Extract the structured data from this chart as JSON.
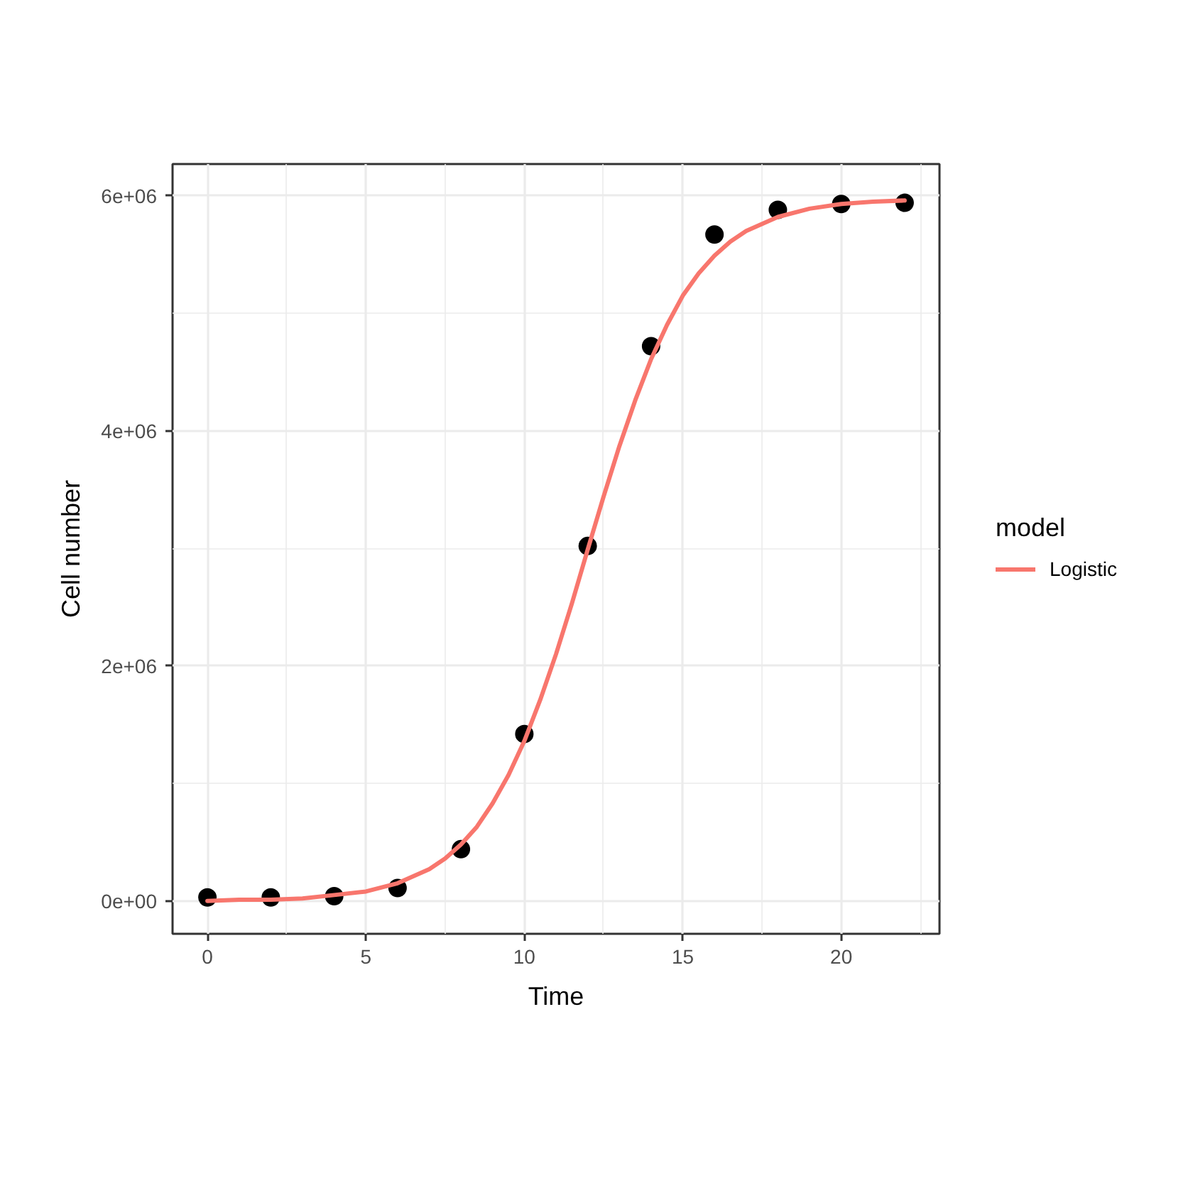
{
  "chart_data": {
    "type": "scatter",
    "xlabel": "Time",
    "ylabel": "Cell number",
    "legend_title": "model",
    "xlim": [
      -1.1,
      23.1
    ],
    "ylim": [
      -280000,
      6270000
    ],
    "xticks": [
      0,
      5,
      10,
      15,
      20
    ],
    "yticks": [
      {
        "value": 0,
        "label": "0e+00"
      },
      {
        "value": 2000000,
        "label": "2e+06"
      },
      {
        "value": 4000000,
        "label": "4e+06"
      },
      {
        "value": 6000000,
        "label": "6e+06"
      }
    ],
    "grid": true,
    "legend": "right",
    "series": [
      {
        "color": "#000000",
        "marker": "circle",
        "x": [
          0,
          2,
          4,
          6,
          8,
          10,
          12,
          14,
          16,
          18,
          20,
          22
        ],
        "values": [
          30000,
          30000,
          40000,
          110000,
          440000,
          1420000,
          3020000,
          4720000,
          5670000,
          5880000,
          5930000,
          5940000
        ]
      },
      {
        "type": "line",
        "name": "Logistic",
        "color": "#f8766d",
        "line_style": "solid",
        "x": [
          0,
          1,
          2,
          3,
          4,
          5,
          6,
          7,
          7.5,
          8,
          8.5,
          9,
          9.5,
          10,
          10.5,
          11,
          11.5,
          12,
          12.5,
          13,
          13.5,
          14,
          14.5,
          15,
          15.5,
          16,
          16.5,
          17,
          18,
          19,
          20,
          21,
          22
        ],
        "values": [
          0,
          10000,
          10000,
          20000,
          50000,
          80000,
          150000,
          270000,
          360000,
          480000,
          630000,
          830000,
          1070000,
          1360000,
          1710000,
          2100000,
          2530000,
          2990000,
          3440000,
          3870000,
          4260000,
          4610000,
          4900000,
          5150000,
          5340000,
          5490000,
          5610000,
          5700000,
          5820000,
          5890000,
          5930000,
          5950000,
          5960000
        ]
      }
    ]
  }
}
